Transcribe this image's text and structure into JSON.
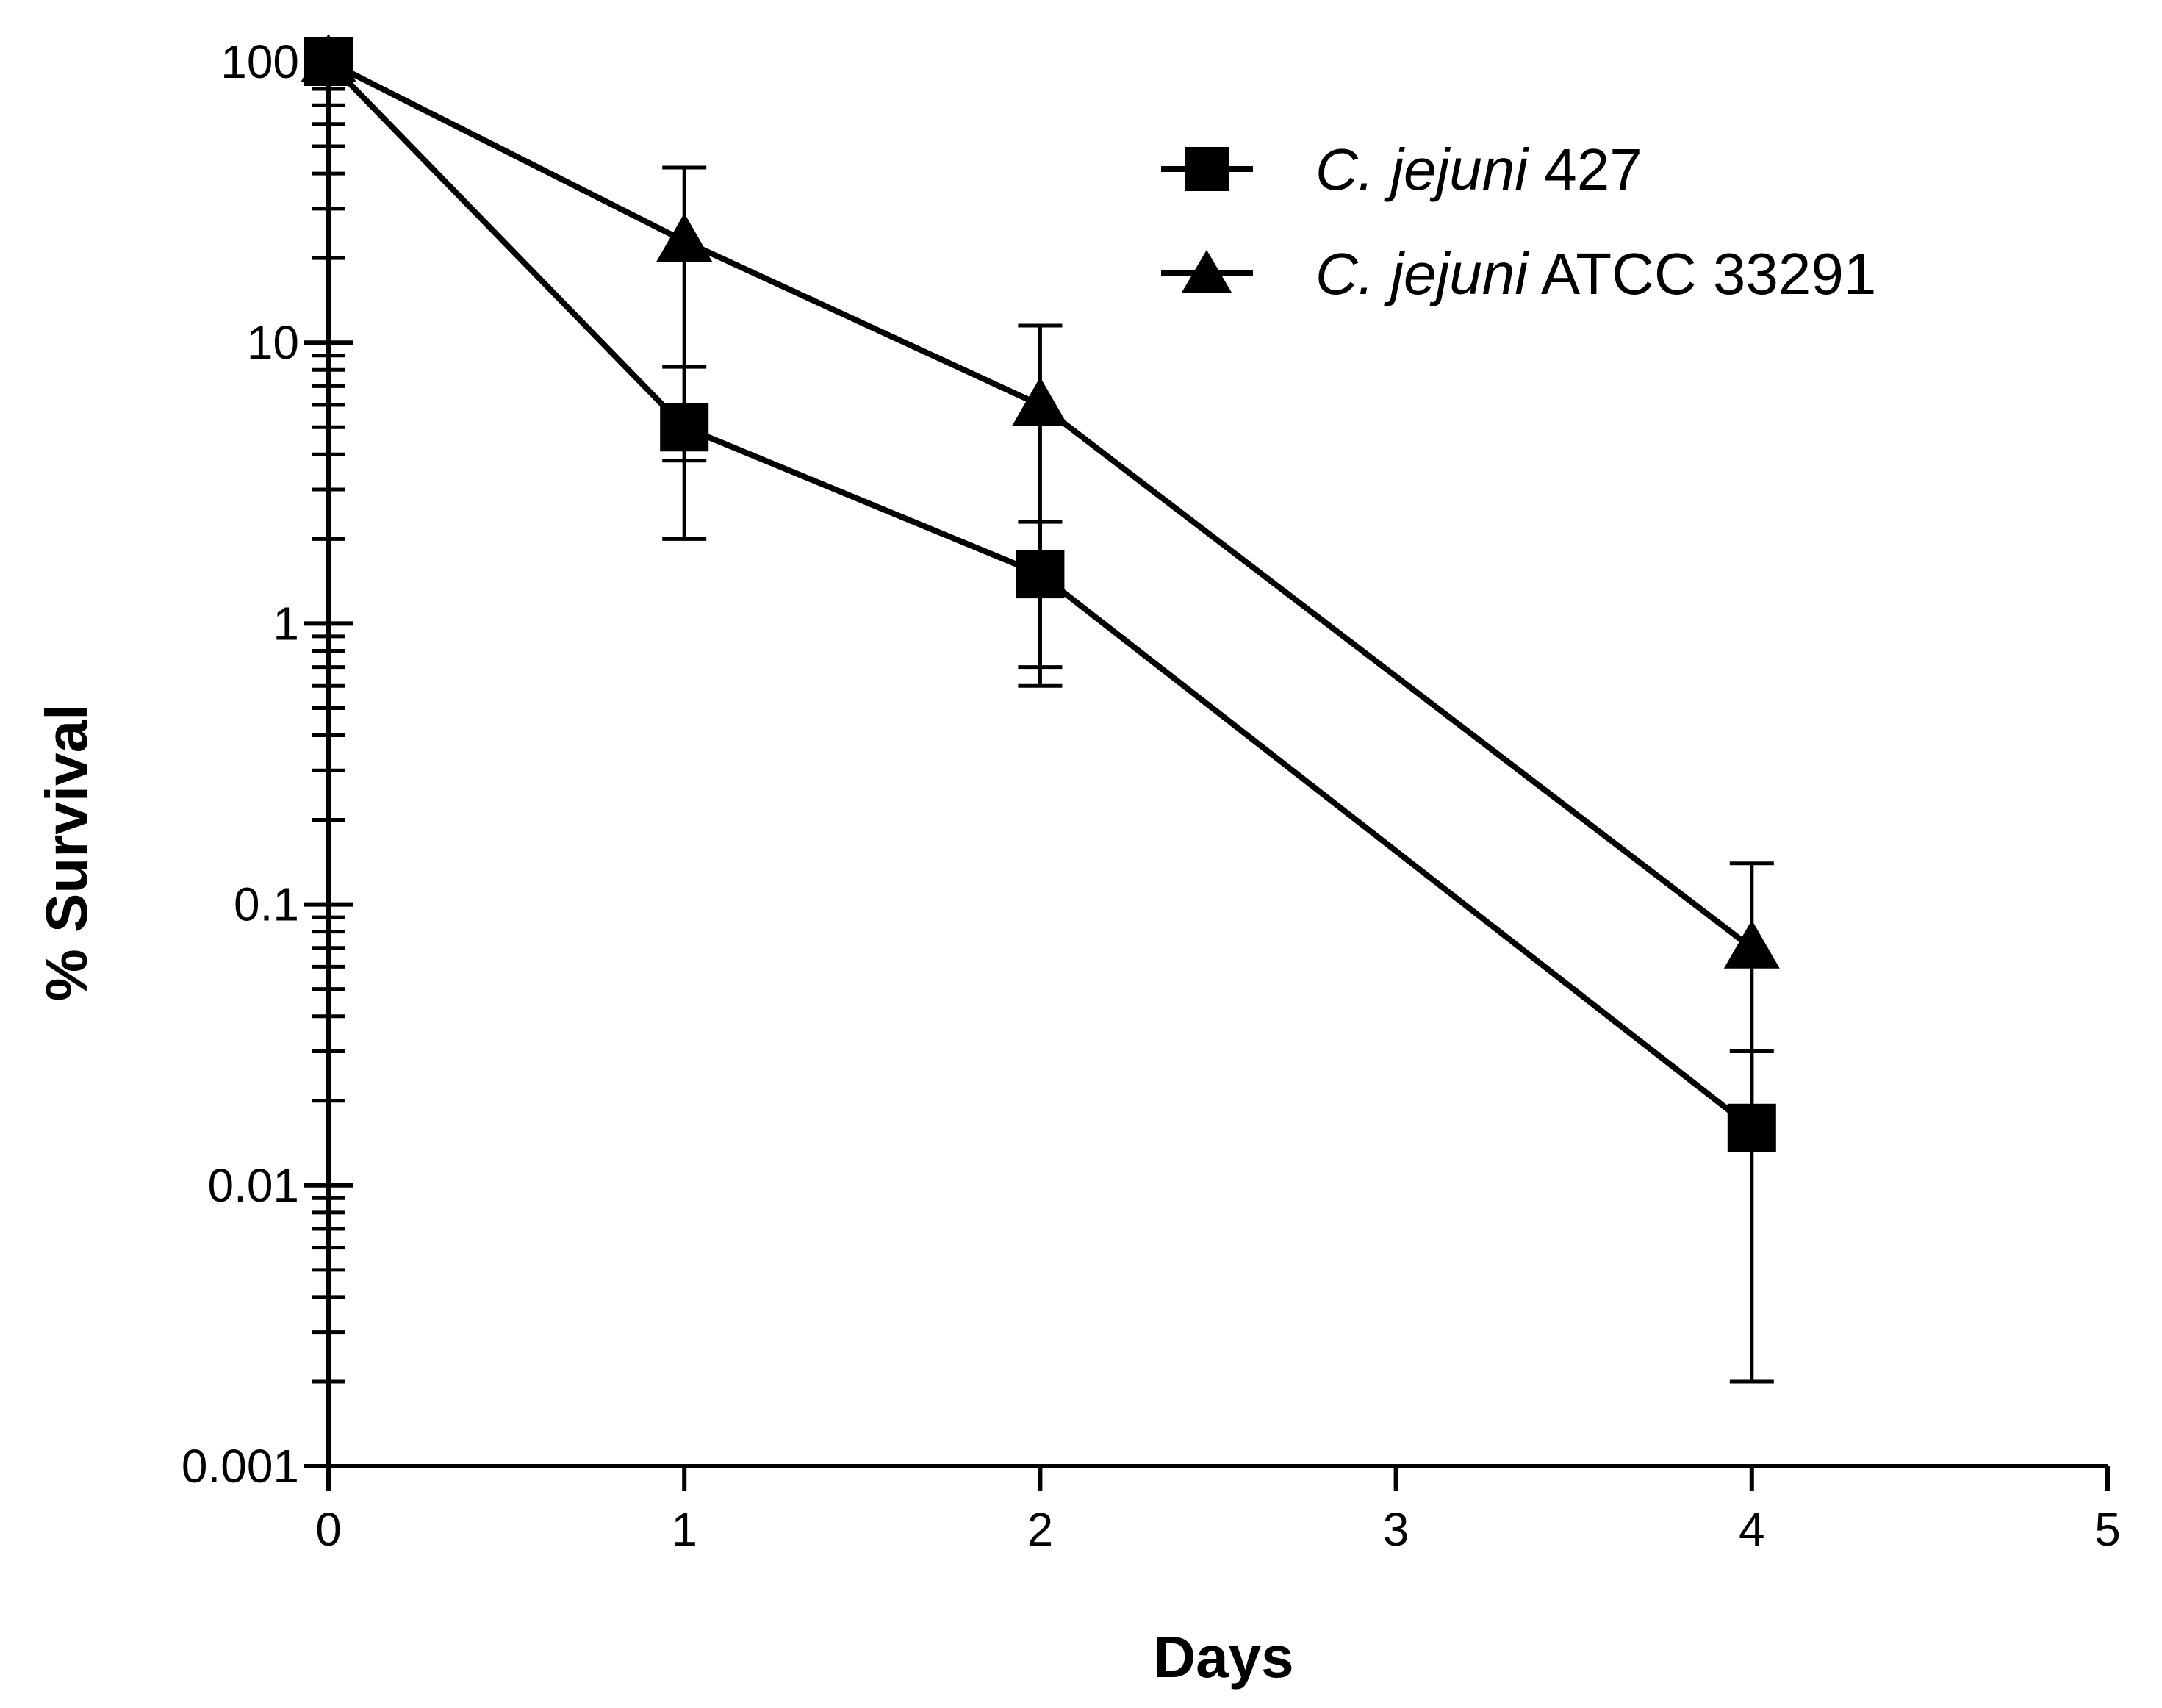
{
  "chart_data": {
    "type": "line",
    "title": "",
    "xlabel": "Days",
    "ylabel": "% Survival",
    "yscale": "log",
    "ylim": [
      0.001,
      100
    ],
    "xlim": [
      0,
      5
    ],
    "x_ticks": [
      "0",
      "1",
      "2",
      "3",
      "4",
      "5"
    ],
    "y_ticks": [
      "0.001",
      "0.01",
      "0.1",
      "1",
      "10",
      "100"
    ],
    "legend_position": "top-right",
    "series": [
      {
        "name_italic": "C. jejuni",
        "name_rest": " 427",
        "marker": "square",
        "x": [
          0,
          1,
          2,
          4
        ],
        "values": [
          100,
          5,
          1.5,
          0.016
        ],
        "err_low": [
          100,
          2,
          0.6,
          0.002
        ],
        "err_high": [
          100,
          8.2,
          2.3,
          0.03
        ]
      },
      {
        "name_italic": "C. jejuni",
        "name_rest": " ATCC 33291",
        "marker": "triangle",
        "x": [
          0,
          1,
          2,
          4
        ],
        "values": [
          100,
          23,
          6,
          0.07
        ],
        "err_low": [
          100,
          3.8,
          0.7,
          0.016
        ],
        "err_high": [
          100,
          42,
          11.5,
          0.14
        ]
      }
    ],
    "colors": {
      "line": "#000000",
      "background": "#ffffff"
    }
  }
}
